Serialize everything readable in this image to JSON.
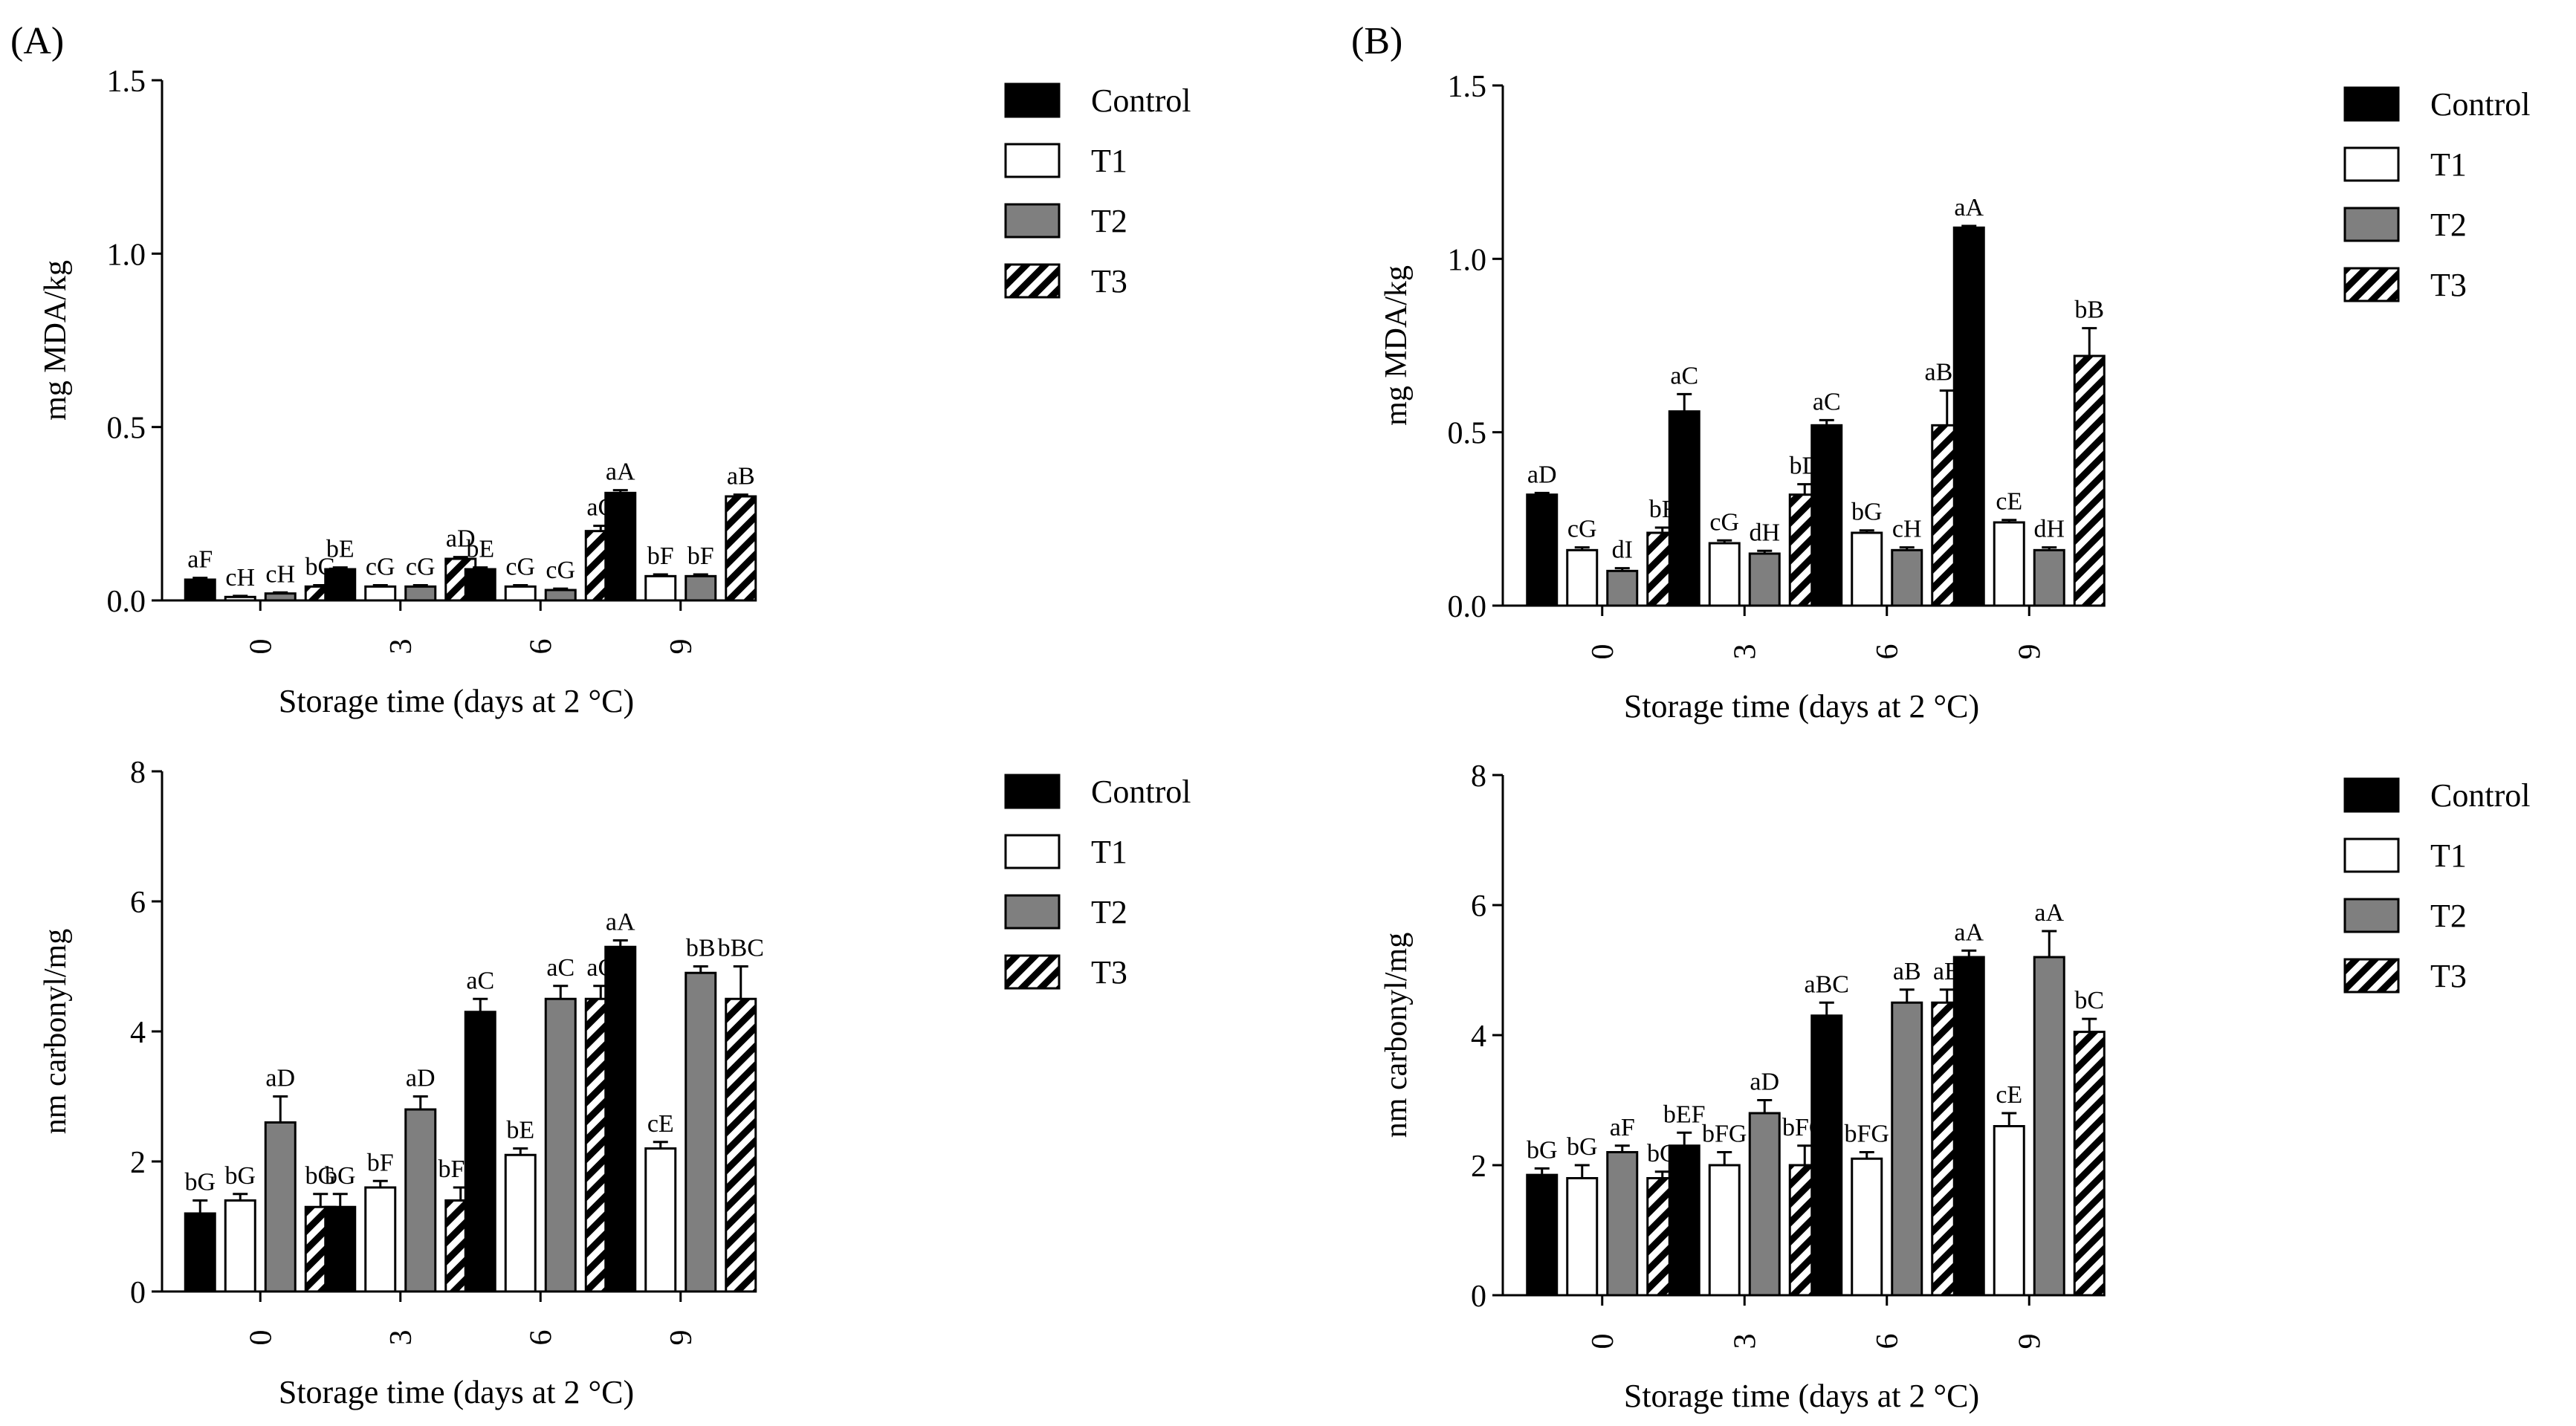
{
  "panel_labels": [
    "(A)",
    "(B)"
  ],
  "legend_entries": [
    "Control",
    "T1",
    "T2",
    "T3"
  ],
  "colors": {
    "control": "#000000",
    "t1": "#ffffff",
    "t2": "#7f7f7f",
    "t3_hatch": "#000000",
    "axis": "#000000"
  },
  "chart_data": [
    {
      "id": "A-top",
      "type": "bar",
      "panel": "A",
      "title": "",
      "xlabel": "Storage time (days at 2 °C)",
      "ylabel": "mg MDA/kg",
      "categories": [
        "0",
        "3",
        "6",
        "9"
      ],
      "ylim": [
        0,
        1.5
      ],
      "yticks": [
        "0.0",
        "0.5",
        "1.0",
        "1.5"
      ],
      "ytick_values": [
        0,
        0.5,
        1.0,
        1.5
      ],
      "legend_position": "top-right",
      "grid": false,
      "series": [
        {
          "name": "Control",
          "values": [
            0.06,
            0.09,
            0.09,
            0.31
          ],
          "errors": [
            0.005,
            0.005,
            0.005,
            0.008
          ],
          "labels": [
            "aF",
            "bE",
            "bE",
            "aA"
          ]
        },
        {
          "name": "T1",
          "values": [
            0.01,
            0.04,
            0.04,
            0.07
          ],
          "errors": [
            0.003,
            0.004,
            0.004,
            0.005
          ],
          "labels": [
            "cH",
            "cG",
            "cG",
            "bF"
          ]
        },
        {
          "name": "T2",
          "values": [
            0.02,
            0.04,
            0.03,
            0.07
          ],
          "errors": [
            0.003,
            0.004,
            0.004,
            0.005
          ],
          "labels": [
            "cH",
            "cG",
            "cG",
            "bF"
          ]
        },
        {
          "name": "T3",
          "values": [
            0.04,
            0.12,
            0.2,
            0.3
          ],
          "errors": [
            0.004,
            0.005,
            0.015,
            0.005
          ],
          "labels": [
            "bG",
            "aD",
            "aC",
            "aB"
          ]
        }
      ]
    },
    {
      "id": "B-top",
      "type": "bar",
      "panel": "B",
      "title": "",
      "xlabel": "Storage time (days at 2 °C)",
      "ylabel": "mg MDA/kg",
      "categories": [
        "0",
        "3",
        "6",
        "9"
      ],
      "ylim": [
        0,
        1.5
      ],
      "yticks": [
        "0.0",
        "0.5",
        "1.0",
        "1.5"
      ],
      "ytick_values": [
        0,
        0.5,
        1.0,
        1.5
      ],
      "legend_position": "top-right",
      "grid": false,
      "series": [
        {
          "name": "Control",
          "values": [
            0.32,
            0.56,
            0.52,
            1.09
          ],
          "errors": [
            0.005,
            0.05,
            0.015,
            0.005
          ],
          "labels": [
            "aD",
            "aC",
            "aC",
            "aA"
          ]
        },
        {
          "name": "T1",
          "values": [
            0.16,
            0.18,
            0.21,
            0.24
          ],
          "errors": [
            0.008,
            0.008,
            0.007,
            0.007
          ],
          "labels": [
            "cG",
            "cG",
            "bG",
            "cE"
          ]
        },
        {
          "name": "T2",
          "values": [
            0.1,
            0.15,
            0.16,
            0.16
          ],
          "errors": [
            0.008,
            0.008,
            0.008,
            0.008
          ],
          "labels": [
            "dI",
            "dH",
            "cH",
            "dH"
          ]
        },
        {
          "name": "T3",
          "values": [
            0.21,
            0.32,
            0.52,
            0.72
          ],
          "errors": [
            0.015,
            0.03,
            0.1,
            0.08
          ],
          "labels": [
            "bF",
            "bD",
            "aBC",
            "bB"
          ]
        }
      ]
    },
    {
      "id": "A-bottom",
      "type": "bar",
      "panel": "A",
      "title": "",
      "xlabel": "Storage time (days at 2 °C)",
      "ylabel": "nm carbonyl/mg",
      "categories": [
        "0",
        "3",
        "6",
        "9"
      ],
      "ylim": [
        0,
        8
      ],
      "yticks": [
        "0",
        "2",
        "4",
        "6",
        "8"
      ],
      "ytick_values": [
        0,
        2,
        4,
        6,
        8
      ],
      "legend_position": "top-right",
      "grid": false,
      "series": [
        {
          "name": "Control",
          "values": [
            1.2,
            1.3,
            4.3,
            5.3
          ],
          "errors": [
            0.2,
            0.2,
            0.2,
            0.1
          ],
          "labels": [
            "bG",
            "bG",
            "aC",
            "aA"
          ]
        },
        {
          "name": "T1",
          "values": [
            1.4,
            1.6,
            2.1,
            2.2
          ],
          "errors": [
            0.1,
            0.1,
            0.1,
            0.1
          ],
          "labels": [
            "bG",
            "bF",
            "bE",
            "cE"
          ]
        },
        {
          "name": "T2",
          "values": [
            2.6,
            2.8,
            4.5,
            4.9
          ],
          "errors": [
            0.4,
            0.2,
            0.2,
            0.1
          ],
          "labels": [
            "aD",
            "aD",
            "aC",
            "bB"
          ]
        },
        {
          "name": "T3",
          "values": [
            1.3,
            1.4,
            4.5,
            4.5
          ],
          "errors": [
            0.2,
            0.2,
            0.2,
            0.5
          ],
          "labels": [
            "bG",
            "bFG",
            "aC",
            "bBC"
          ]
        }
      ]
    },
    {
      "id": "B-bottom",
      "type": "bar",
      "panel": "B",
      "title": "",
      "xlabel": "Storage time (days at 2 °C)",
      "ylabel": "nm carbonyl/mg",
      "categories": [
        "0",
        "3",
        "6",
        "9"
      ],
      "ylim": [
        0,
        8
      ],
      "yticks": [
        "0",
        "2",
        "4",
        "6",
        "8"
      ],
      "ytick_values": [
        0,
        2,
        4,
        6,
        8
      ],
      "legend_position": "top-right",
      "grid": false,
      "series": [
        {
          "name": "Control",
          "values": [
            1.85,
            2.3,
            4.3,
            5.2
          ],
          "errors": [
            0.1,
            0.2,
            0.2,
            0.1
          ],
          "labels": [
            "bG",
            "bEF",
            "aBC",
            "aA"
          ]
        },
        {
          "name": "T1",
          "values": [
            1.8,
            2.0,
            2.1,
            2.6
          ],
          "errors": [
            0.2,
            0.2,
            0.1,
            0.2
          ],
          "labels": [
            "bG",
            "bFG",
            "bFG",
            "cE"
          ]
        },
        {
          "name": "T2",
          "values": [
            2.2,
            2.8,
            4.5,
            5.2
          ],
          "errors": [
            0.1,
            0.2,
            0.2,
            0.4
          ],
          "labels": [
            "aF",
            "aD",
            "aB",
            "aA"
          ]
        },
        {
          "name": "T3",
          "values": [
            1.8,
            2.0,
            4.5,
            4.05
          ],
          "errors": [
            0.1,
            0.3,
            0.2,
            0.2
          ],
          "labels": [
            "bG",
            "bFG",
            "aB",
            "bC"
          ]
        }
      ]
    }
  ]
}
